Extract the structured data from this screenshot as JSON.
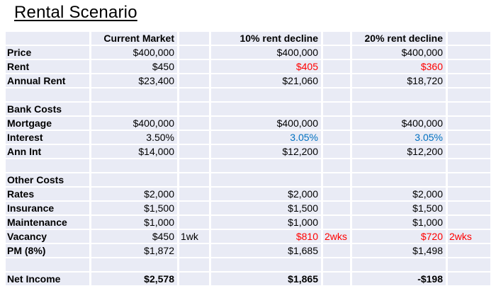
{
  "title": "Rental Scenario",
  "colors": {
    "red": "#ff0000",
    "blue": "#0070c0",
    "cell_bg": "#e9ebf5",
    "text": "#000000"
  },
  "table": {
    "column_headers": [
      "",
      "Current Market",
      "",
      "10% rent decline",
      "",
      "20% rent decline",
      ""
    ],
    "rows": [
      {
        "cells": [
          {
            "t": ""
          },
          {
            "t": "Current Market",
            "b": true
          },
          {
            "t": ""
          },
          {
            "t": "10% rent decline",
            "b": true
          },
          {
            "t": ""
          },
          {
            "t": "20% rent decline",
            "b": true
          },
          {
            "t": ""
          }
        ]
      },
      {
        "cells": [
          {
            "t": "Price",
            "b": true
          },
          {
            "t": "$400,000"
          },
          {
            "t": ""
          },
          {
            "t": "$400,000"
          },
          {
            "t": ""
          },
          {
            "t": "$400,000"
          },
          {
            "t": ""
          }
        ]
      },
      {
        "cells": [
          {
            "t": "Rent",
            "b": true
          },
          {
            "t": "$450"
          },
          {
            "t": ""
          },
          {
            "t": "$405",
            "c": "red"
          },
          {
            "t": ""
          },
          {
            "t": "$360",
            "c": "red"
          },
          {
            "t": ""
          }
        ]
      },
      {
        "cells": [
          {
            "t": "Annual Rent",
            "b": true
          },
          {
            "t": "$23,400"
          },
          {
            "t": ""
          },
          {
            "t": "$21,060"
          },
          {
            "t": ""
          },
          {
            "t": "$18,720"
          },
          {
            "t": ""
          }
        ]
      },
      {
        "cells": [
          {
            "t": ""
          },
          {
            "t": ""
          },
          {
            "t": ""
          },
          {
            "t": ""
          },
          {
            "t": ""
          },
          {
            "t": ""
          },
          {
            "t": ""
          }
        ]
      },
      {
        "cells": [
          {
            "t": "Bank Costs",
            "b": true
          },
          {
            "t": ""
          },
          {
            "t": ""
          },
          {
            "t": ""
          },
          {
            "t": ""
          },
          {
            "t": ""
          },
          {
            "t": ""
          }
        ]
      },
      {
        "cells": [
          {
            "t": "Mortgage",
            "b": true
          },
          {
            "t": "$400,000"
          },
          {
            "t": ""
          },
          {
            "t": "$400,000"
          },
          {
            "t": ""
          },
          {
            "t": "$400,000"
          },
          {
            "t": ""
          }
        ]
      },
      {
        "cells": [
          {
            "t": "Interest",
            "b": true
          },
          {
            "t": "3.50%"
          },
          {
            "t": ""
          },
          {
            "t": "3.05%",
            "c": "blue"
          },
          {
            "t": ""
          },
          {
            "t": "3.05%",
            "c": "blue"
          },
          {
            "t": ""
          }
        ]
      },
      {
        "cells": [
          {
            "t": "Ann Int",
            "b": true
          },
          {
            "t": "$14,000"
          },
          {
            "t": ""
          },
          {
            "t": "$12,200"
          },
          {
            "t": ""
          },
          {
            "t": "$12,200"
          },
          {
            "t": ""
          }
        ]
      },
      {
        "cells": [
          {
            "t": ""
          },
          {
            "t": ""
          },
          {
            "t": ""
          },
          {
            "t": ""
          },
          {
            "t": ""
          },
          {
            "t": ""
          },
          {
            "t": ""
          }
        ]
      },
      {
        "cells": [
          {
            "t": "Other Costs",
            "b": true
          },
          {
            "t": ""
          },
          {
            "t": ""
          },
          {
            "t": ""
          },
          {
            "t": ""
          },
          {
            "t": ""
          },
          {
            "t": ""
          }
        ]
      },
      {
        "cells": [
          {
            "t": "Rates",
            "b": true
          },
          {
            "t": "$2,000"
          },
          {
            "t": ""
          },
          {
            "t": "$2,000"
          },
          {
            "t": ""
          },
          {
            "t": "$2,000"
          },
          {
            "t": ""
          }
        ]
      },
      {
        "cells": [
          {
            "t": "Insurance",
            "b": true
          },
          {
            "t": "$1,500"
          },
          {
            "t": ""
          },
          {
            "t": "$1,500"
          },
          {
            "t": ""
          },
          {
            "t": "$1,500"
          },
          {
            "t": ""
          }
        ]
      },
      {
        "cells": [
          {
            "t": "Maintenance",
            "b": true
          },
          {
            "t": "$1,000"
          },
          {
            "t": ""
          },
          {
            "t": "$1,000"
          },
          {
            "t": ""
          },
          {
            "t": "$1,000"
          },
          {
            "t": ""
          }
        ]
      },
      {
        "cells": [
          {
            "t": "Vacancy",
            "b": true
          },
          {
            "t": "$450"
          },
          {
            "t": "1wk"
          },
          {
            "t": "$810",
            "c": "red"
          },
          {
            "t": "2wks",
            "c": "red"
          },
          {
            "t": "$720",
            "c": "red"
          },
          {
            "t": "2wks",
            "c": "red"
          }
        ]
      },
      {
        "cells": [
          {
            "t": "PM (8%)",
            "b": true
          },
          {
            "t": "$1,872"
          },
          {
            "t": ""
          },
          {
            "t": "$1,685"
          },
          {
            "t": ""
          },
          {
            "t": "$1,498"
          },
          {
            "t": ""
          }
        ]
      },
      {
        "cells": [
          {
            "t": ""
          },
          {
            "t": ""
          },
          {
            "t": ""
          },
          {
            "t": ""
          },
          {
            "t": ""
          },
          {
            "t": ""
          },
          {
            "t": ""
          }
        ]
      },
      {
        "cells": [
          {
            "t": "Net Income",
            "b": true
          },
          {
            "t": "$2,578",
            "b": true
          },
          {
            "t": ""
          },
          {
            "t": "$1,865",
            "b": true
          },
          {
            "t": ""
          },
          {
            "t": "-$198",
            "b": true
          },
          {
            "t": ""
          }
        ]
      }
    ]
  }
}
